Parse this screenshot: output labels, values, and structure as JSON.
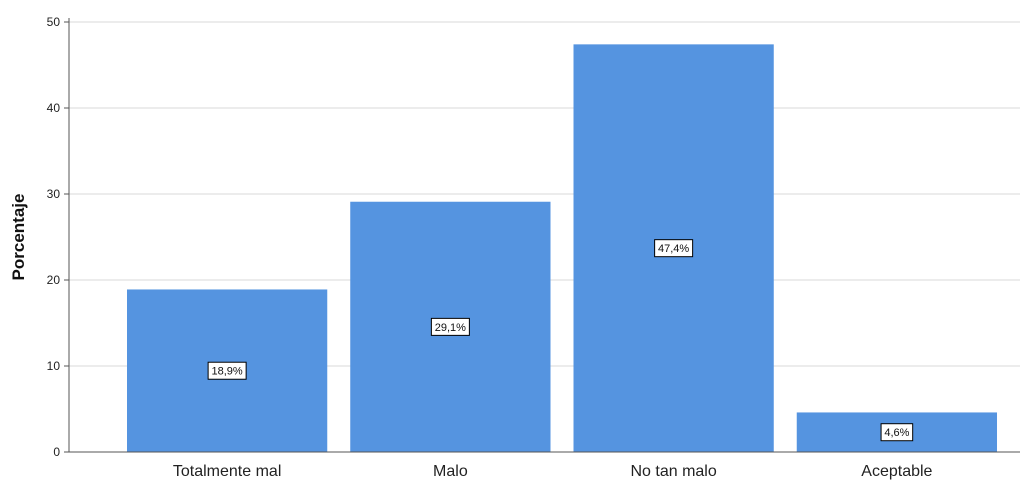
{
  "chart_data": {
    "type": "bar",
    "ylabel": "Porcentaje",
    "xlabel": "",
    "categories": [
      "Totalmente mal",
      "Malo",
      "No tan malo",
      "Aceptable"
    ],
    "values": [
      18.9,
      29.1,
      47.4,
      4.6
    ],
    "data_labels": [
      "18,9%",
      "29,1%",
      "47,4%",
      "4,6%"
    ],
    "ylim": [
      0,
      50
    ],
    "yticks": [
      "0",
      "10",
      "20",
      "30",
      "40",
      "50"
    ],
    "grid": true,
    "bar_color": "#5594e0",
    "grid_color": "#d9d9d9",
    "axis_color": "#555555"
  }
}
